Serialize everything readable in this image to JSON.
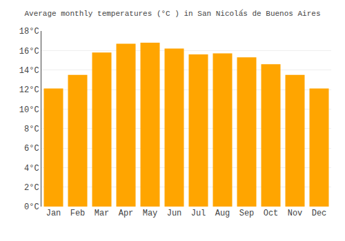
{
  "chart_data": {
    "type": "bar",
    "title": "Average monthly temperatures (°C ) in San Nicolá́s de Buenos Aires",
    "categories": [
      "Jan",
      "Feb",
      "Mar",
      "Apr",
      "May",
      "Jun",
      "Jul",
      "Aug",
      "Sep",
      "Oct",
      "Nov",
      "Dec"
    ],
    "values": [
      12.1,
      13.5,
      15.8,
      16.7,
      16.8,
      16.2,
      15.6,
      15.7,
      15.3,
      14.6,
      13.5,
      12.1
    ],
    "color": "#FFA500",
    "ylim": [
      0,
      18
    ],
    "yticks": [
      {
        "value": 0,
        "label": "0°C"
      },
      {
        "value": 2,
        "label": "2°C"
      },
      {
        "value": 4,
        "label": "4°C"
      },
      {
        "value": 6,
        "label": "6°C"
      },
      {
        "value": 8,
        "label": "8°C"
      },
      {
        "value": 10,
        "label": "10°C"
      },
      {
        "value": 12,
        "label": "12°C"
      },
      {
        "value": 14,
        "label": "14°C"
      },
      {
        "value": 16,
        "label": "16°C"
      },
      {
        "value": 18,
        "label": "18°C"
      }
    ],
    "grid": true
  }
}
